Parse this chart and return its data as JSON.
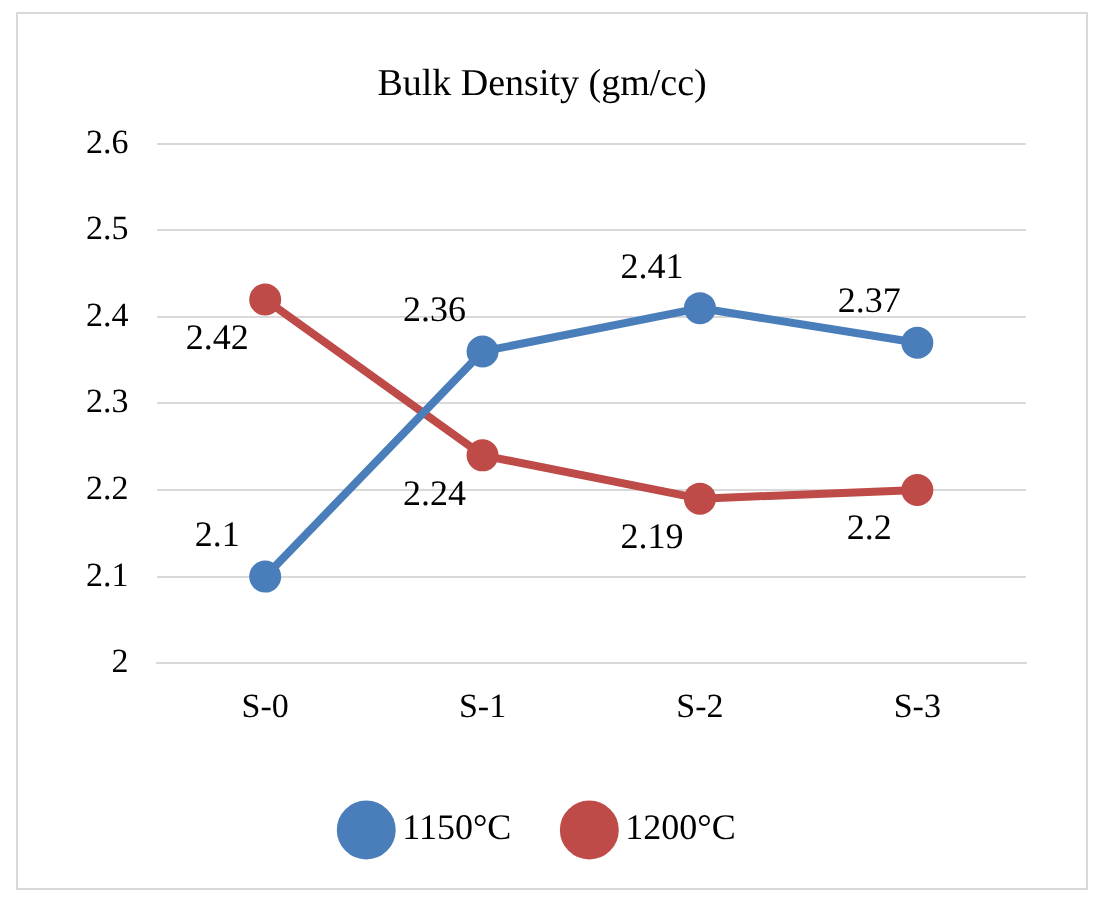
{
  "chart_data": {
    "type": "line",
    "title": "Bulk Density (gm/cc)",
    "categories": [
      "S-0",
      "S-1",
      "S-2",
      "S-3"
    ],
    "series": [
      {
        "name": "1150°C",
        "color": "#4a7ebb",
        "values": [
          2.1,
          2.36,
          2.41,
          2.37
        ]
      },
      {
        "name": "1200°C",
        "color": "#be4b48",
        "values": [
          2.42,
          2.24,
          2.19,
          2.2
        ]
      }
    ],
    "ylim": [
      2,
      2.6
    ],
    "yticks": [
      2,
      2.1,
      2.2,
      2.3,
      2.4,
      2.5,
      2.6
    ],
    "grid": "y",
    "legend": "bottom",
    "marker": "circle",
    "line_style": "solid",
    "data_labels": true
  }
}
